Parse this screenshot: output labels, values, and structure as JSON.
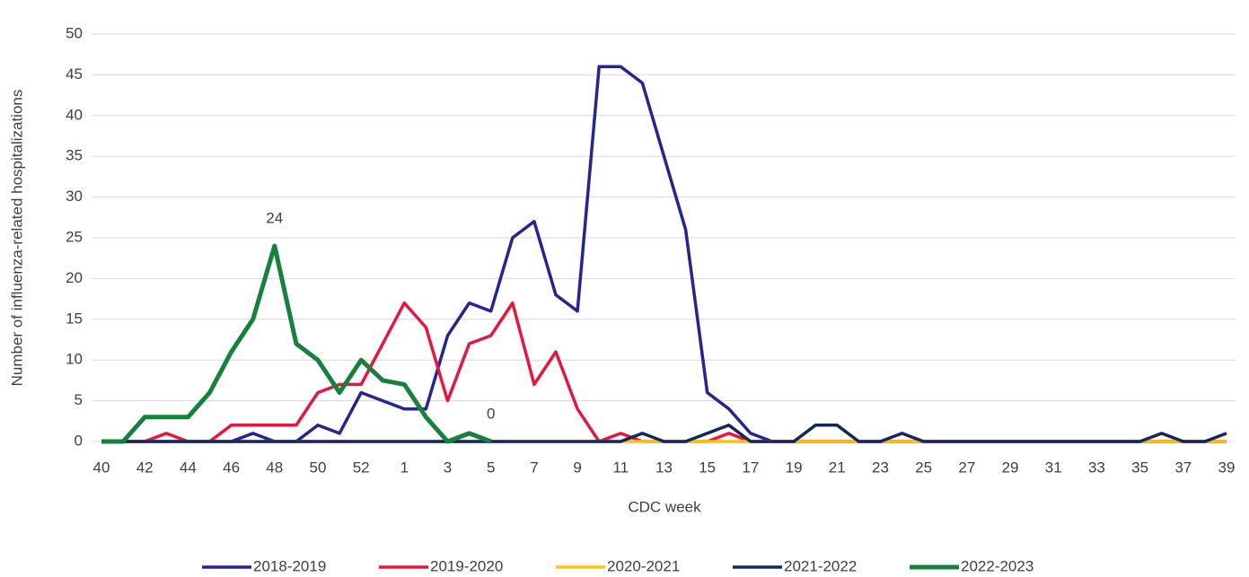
{
  "chart_data": {
    "type": "line",
    "x_label": "CDC week",
    "y_label": "Number of influenza-related hospitalizations",
    "categories": [
      "40",
      null,
      "42",
      null,
      "44",
      null,
      "46",
      null,
      "48",
      null,
      "50",
      null,
      "52",
      null,
      "1",
      null,
      "3",
      null,
      "5",
      null,
      "7",
      null,
      "9",
      null,
      "11",
      null,
      "13",
      null,
      "15",
      null,
      "17",
      null,
      "19",
      null,
      "21",
      null,
      "23",
      null,
      "25",
      null,
      "27",
      null,
      "29",
      null,
      "31",
      null,
      "33",
      null,
      "35",
      null,
      "37",
      null,
      "39"
    ],
    "series": [
      {
        "name": "2018-2019",
        "color": "#25258f",
        "width": 3.5,
        "values": [
          0,
          0,
          0,
          0,
          0,
          0,
          0,
          1,
          0,
          0,
          2,
          1,
          6,
          5,
          4,
          4,
          13,
          17,
          16,
          25,
          27,
          18,
          16,
          46,
          46,
          44,
          35,
          26,
          6,
          4,
          1,
          0,
          0,
          0,
          0,
          0,
          0,
          0,
          0,
          0,
          0,
          0,
          0,
          0,
          0,
          0,
          0,
          0,
          0,
          0,
          0,
          0,
          0
        ]
      },
      {
        "name": "2019-2020",
        "color": "#e5173f",
        "width": 3.5,
        "values": [
          0,
          0,
          0,
          1,
          0,
          0,
          2,
          2,
          2,
          2,
          6,
          7,
          7,
          12,
          17,
          14,
          5,
          12,
          13,
          17,
          7,
          11,
          4,
          0,
          1,
          0,
          0,
          0,
          0,
          1,
          0,
          0,
          0,
          0,
          0,
          0,
          0,
          0,
          0,
          0,
          0,
          0,
          0,
          0,
          0,
          0,
          0,
          0,
          0,
          0,
          0,
          0,
          0
        ]
      },
      {
        "name": "2020-2021",
        "color": "#ffc20e",
        "width": 3.5,
        "values": [
          0,
          0,
          0,
          0,
          0,
          0,
          0,
          0,
          0,
          0,
          0,
          0,
          0,
          0,
          0,
          0,
          0,
          0,
          0,
          0,
          0,
          0,
          0,
          0,
          0,
          0,
          0,
          0,
          0,
          0,
          0,
          0,
          0,
          0,
          0,
          0,
          0,
          0,
          0,
          0,
          0,
          0,
          0,
          0,
          0,
          0,
          0,
          0,
          0,
          0,
          0,
          0,
          0
        ]
      },
      {
        "name": "2021-2022",
        "color": "#14265f",
        "width": 3.5,
        "values": [
          0,
          0,
          0,
          0,
          0,
          0,
          0,
          0,
          0,
          0,
          0,
          0,
          0,
          0,
          0,
          0,
          0,
          0,
          0,
          0,
          0,
          0,
          0,
          0,
          0,
          1,
          0,
          0,
          1,
          2,
          0,
          0,
          0,
          2,
          2,
          0,
          0,
          1,
          0,
          0,
          0,
          0,
          0,
          0,
          0,
          0,
          0,
          0,
          0,
          1,
          0,
          0,
          1
        ]
      },
      {
        "name": "2022-2023",
        "color": "#17803c",
        "width": 5,
        "values": [
          0,
          0,
          3,
          3,
          3,
          6,
          11,
          15,
          24,
          12,
          10,
          6,
          10,
          7.5,
          7,
          3,
          0,
          1,
          0,
          null,
          null,
          null,
          null,
          null,
          null,
          null,
          null,
          null,
          null,
          null,
          null,
          null,
          null,
          null,
          null,
          null,
          null,
          null,
          null,
          null,
          null,
          null,
          null,
          null,
          null,
          null,
          null,
          null,
          null,
          null,
          null,
          null,
          null
        ],
        "value_labels": [
          null,
          null,
          null,
          null,
          null,
          null,
          null,
          null,
          "24",
          null,
          null,
          null,
          null,
          null,
          null,
          null,
          null,
          null,
          "0",
          null,
          null,
          null,
          null,
          null,
          null,
          null,
          null,
          null,
          null,
          null,
          null,
          null,
          null,
          null,
          null,
          null,
          null,
          null,
          null,
          null,
          null,
          null,
          null,
          null,
          null,
          null,
          null,
          null,
          null,
          null,
          null,
          null,
          null
        ]
      }
    ],
    "ylim": [
      0,
      50
    ],
    "yticks": [
      0,
      5,
      10,
      15,
      20,
      25,
      30,
      35,
      40,
      45,
      50
    ],
    "grid": true,
    "legend": "bottom"
  }
}
